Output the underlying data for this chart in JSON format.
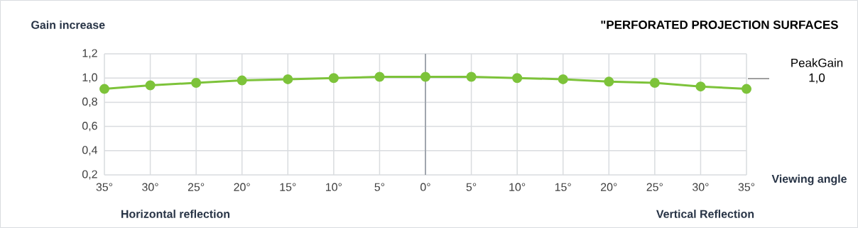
{
  "chart_data": {
    "type": "line",
    "title": "\"PERFORATED   PROJECTION SURFACES",
    "ylabel": "Gain increase",
    "xlabel": "Viewing angle",
    "categories": [
      "35°",
      "30°",
      "25°",
      "20°",
      "15°",
      "10°",
      "5°",
      "0°",
      "5°",
      "10°",
      "15°",
      "20°",
      "25°",
      "30°",
      "35°"
    ],
    "series": [
      {
        "color": "#7dc33a",
        "values": [
          0.91,
          0.94,
          0.96,
          0.98,
          0.99,
          1.0,
          1.01,
          1.01,
          1.01,
          1.0,
          0.99,
          0.97,
          0.96,
          0.93,
          0.91
        ]
      }
    ],
    "ylim": [
      0.2,
      1.2
    ],
    "yticks": [
      {
        "value": 0.2,
        "label": "0,2"
      },
      {
        "value": 0.4,
        "label": "0,4"
      },
      {
        "value": 0.6,
        "label": "0,6"
      },
      {
        "value": 0.8,
        "label": "0,8"
      },
      {
        "value": 1.0,
        "label": "1,0"
      },
      {
        "value": 1.2,
        "label": "1,2"
      }
    ],
    "grid": true,
    "marker": "circle",
    "line_style": "solid",
    "ref_lines": [
      {
        "axis": "x",
        "value": "0°",
        "color": "#a0a6ae"
      }
    ],
    "annotations": [
      "PeakGain 1,0",
      "Horizontal reflection",
      "Vertical Reflection"
    ]
  }
}
